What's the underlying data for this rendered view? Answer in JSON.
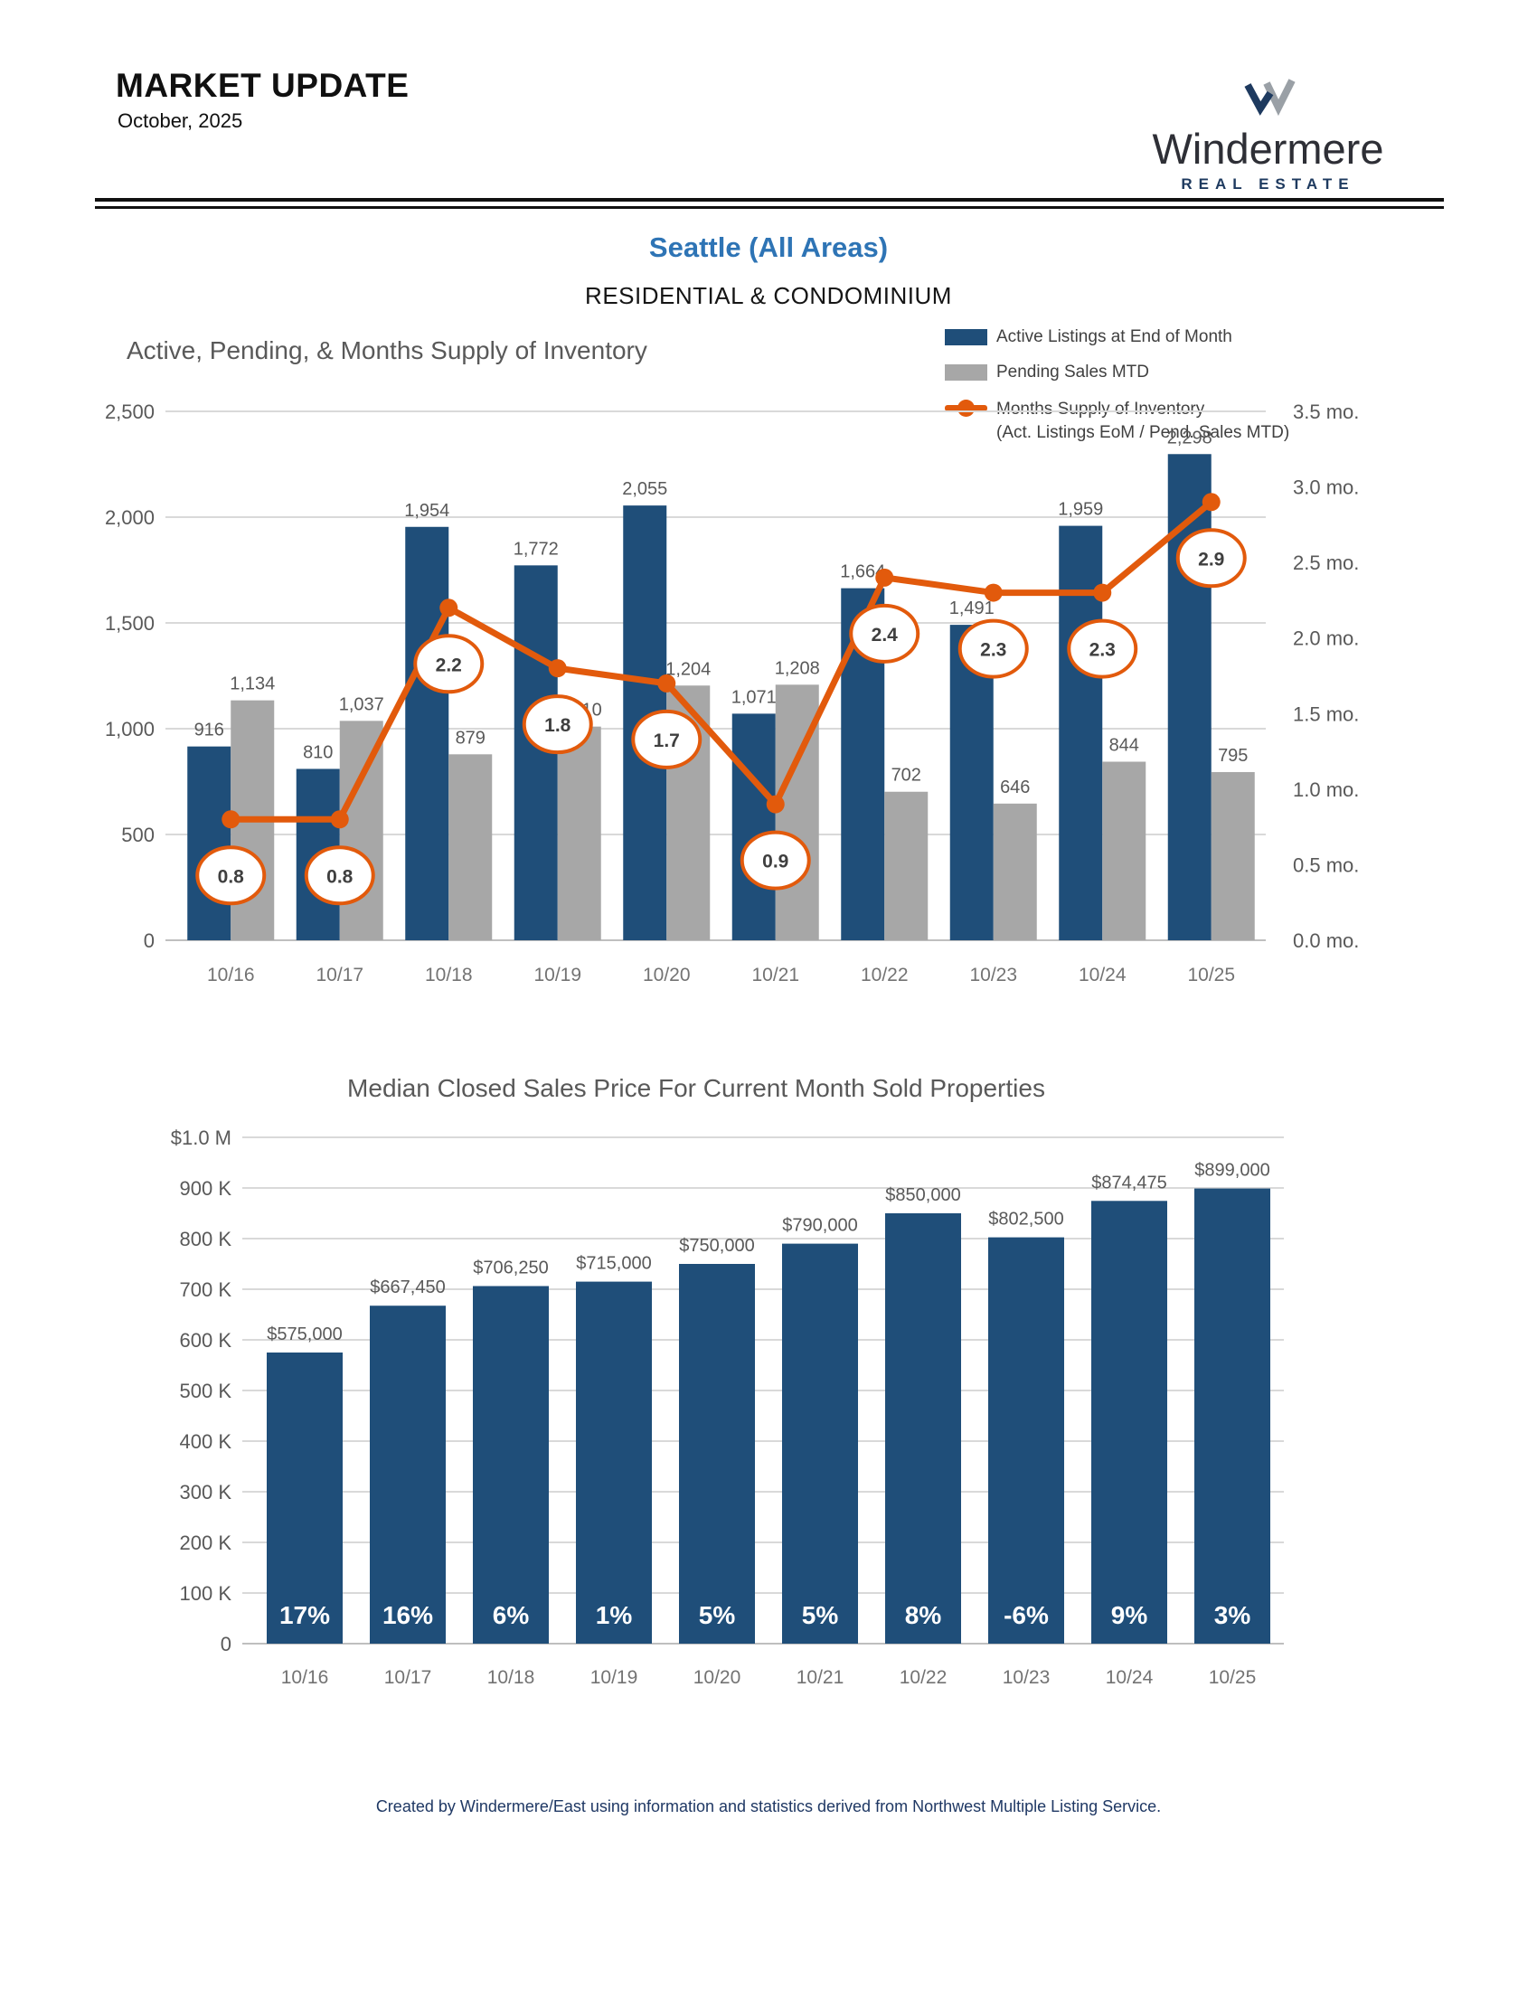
{
  "header": {
    "title": "MARKET UPDATE",
    "date": "October, 2025",
    "brand": "Windermere",
    "brand_sub": "REAL ESTATE"
  },
  "page": {
    "region_title": "Seattle (All Areas)",
    "subtitle": "RESIDENTIAL & CONDOMINIUM",
    "footer": "Created by Windermere/East using information and statistics derived from Northwest Multiple Listing Service."
  },
  "colors": {
    "bar_blue": "#1F4E79",
    "bar_gray": "#A7A7A7",
    "line_orange": "#E25A0C",
    "title_blue": "#2E74B5",
    "footer_navy": "#1F3864",
    "brand_navy": "#1E3A5F",
    "brand_gray": "#9AA0A6"
  },
  "chart_data": [
    {
      "type": "bar+line",
      "title": "Active, Pending, & Months Supply of Inventory",
      "categories": [
        "10/16",
        "10/17",
        "10/18",
        "10/19",
        "10/20",
        "10/21",
        "10/22",
        "10/23",
        "10/24",
        "10/25"
      ],
      "series": [
        {
          "name": "Active Listings at End of Month",
          "type": "bar",
          "color": "bar_blue",
          "values": [
            916,
            810,
            1954,
            1772,
            2055,
            1071,
            1664,
            1491,
            1959,
            2298
          ]
        },
        {
          "name": "Pending Sales MTD",
          "type": "bar",
          "color": "bar_gray",
          "values": [
            1134,
            1037,
            879,
            1010,
            1204,
            1208,
            702,
            646,
            844,
            795
          ]
        },
        {
          "name": "Months Supply of Inventory (Act. Listings EoM / Pend. Sales MTD)",
          "type": "line",
          "axis": "right",
          "color": "line_orange",
          "values": [
            0.8,
            0.8,
            2.2,
            1.8,
            1.7,
            0.9,
            2.4,
            2.3,
            2.3,
            2.9
          ]
        }
      ],
      "bar_labels": [
        [
          "916",
          "810",
          "1,954",
          "1,772",
          "2,055",
          "1,071",
          "1,664",
          "1,491",
          "1,959",
          "2,298"
        ],
        [
          "1,134",
          "1,037",
          "879",
          "1,010",
          "1,204",
          "1,208",
          "702",
          "646",
          "844",
          "795"
        ]
      ],
      "line_labels": [
        "0.8",
        "0.8",
        "2.2",
        "1.8",
        "1.7",
        "0.9",
        "2.4",
        "2.3",
        "2.3",
        "2.9"
      ],
      "left_axis": {
        "min": 0,
        "max": 2500,
        "step": 500,
        "labels": [
          "2,500",
          "2,000",
          "1,500",
          "1,000",
          "500",
          "0"
        ]
      },
      "right_axis": {
        "min": 0,
        "max": 3.5,
        "step": 0.5,
        "labels": [
          "3.5 mo.",
          "3.0 mo.",
          "2.5 mo.",
          "2.0 mo.",
          "1.5 mo.",
          "1.0 mo.",
          "0.5 mo.",
          "0.0 mo."
        ]
      },
      "legend": [
        {
          "label": "Active Listings at End of Month"
        },
        {
          "label": "Pending Sales MTD"
        },
        {
          "label": "Months Supply of Inventory",
          "label2": "(Act. Listings EoM / Pend. Sales MTD)"
        }
      ],
      "grid": true,
      "legend_position": "top-right"
    },
    {
      "type": "bar",
      "title": "Median Closed Sales Price For Current Month Sold Properties",
      "categories": [
        "10/16",
        "10/17",
        "10/18",
        "10/19",
        "10/20",
        "10/21",
        "10/22",
        "10/23",
        "10/24",
        "10/25"
      ],
      "values": [
        575000,
        667450,
        706250,
        715000,
        750000,
        790000,
        850000,
        802500,
        874475,
        899000
      ],
      "bar_labels": [
        "$575,000",
        "$667,450",
        "$706,250",
        "$715,000",
        "$750,000",
        "$790,000",
        "$850,000",
        "$802,500",
        "$874,475",
        "$899,000"
      ],
      "pct_labels": [
        "17%",
        "16%",
        "6%",
        "1%",
        "5%",
        "5%",
        "8%",
        "-6%",
        "9%",
        "3%"
      ],
      "y_axis": {
        "min": 0,
        "max": 1000000,
        "step": 100000,
        "labels": [
          "$1.0 M",
          "900 K",
          "800 K",
          "700 K",
          "600 K",
          "500 K",
          "400 K",
          "300 K",
          "200 K",
          "100 K",
          "0"
        ]
      },
      "grid": true,
      "ylabel": "",
      "xlabel": ""
    }
  ]
}
